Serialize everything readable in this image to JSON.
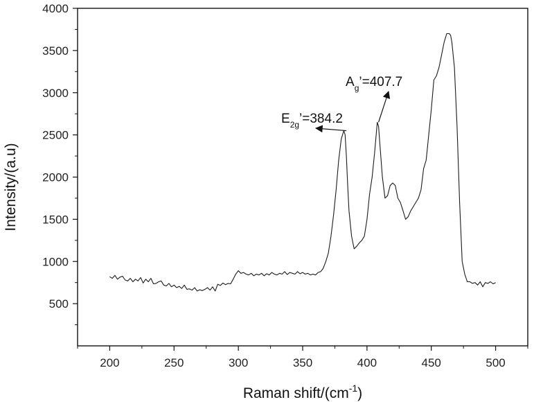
{
  "chart_data": {
    "type": "line",
    "title": "",
    "xlabel_main": "Raman shift/(cm",
    "xlabel_sup": "-1",
    "xlabel_close": ")",
    "ylabel": "Intensity/(a.u)",
    "xlim": [
      175,
      525
    ],
    "ylim": [
      0,
      4000
    ],
    "x_ticks": [
      200,
      250,
      300,
      350,
      400,
      450,
      500
    ],
    "y_ticks": [
      500,
      1000,
      1500,
      2000,
      2500,
      3000,
      3500,
      4000
    ],
    "grid": false,
    "legend": "none",
    "line_color": "#1a1a1a",
    "series": [
      {
        "x": [
          200,
          202,
          204,
          206,
          208,
          210,
          212,
          214,
          216,
          218,
          220,
          222,
          224,
          226,
          228,
          230,
          232,
          234,
          236,
          238,
          240,
          242,
          244,
          246,
          248,
          250,
          252,
          254,
          256,
          258,
          260,
          262,
          264,
          266,
          268,
          270,
          272,
          274,
          276,
          278,
          280,
          282,
          284,
          286,
          288,
          290,
          292,
          294,
          296,
          298,
          300,
          302,
          304,
          306,
          308,
          310,
          312,
          314,
          316,
          318,
          320,
          322,
          324,
          326,
          328,
          330,
          332,
          334,
          336,
          338,
          340,
          342,
          344,
          346,
          348,
          350,
          352,
          354,
          356,
          358,
          360,
          362,
          364,
          366,
          368,
          370,
          372,
          374,
          376,
          378,
          380,
          382,
          383,
          384,
          385,
          386,
          388,
          390,
          392,
          394,
          396,
          398,
          400,
          402,
          404,
          406,
          408,
          409,
          410,
          412,
          414,
          416,
          418,
          420,
          422,
          424,
          426,
          428,
          430,
          432,
          434,
          436,
          438,
          440,
          442,
          444,
          446,
          448,
          450,
          452,
          454,
          456,
          458,
          460,
          462,
          464,
          465,
          466,
          468,
          470,
          472,
          474,
          476,
          478,
          480,
          482,
          484,
          486,
          488,
          490,
          492,
          494,
          496,
          498,
          500
        ],
        "y": [
          820,
          800,
          835,
          790,
          815,
          825,
          780,
          770,
          800,
          760,
          790,
          770,
          810,
          745,
          790,
          760,
          800,
          735,
          740,
          760,
          770,
          720,
          710,
          740,
          700,
          720,
          690,
          705,
          680,
          720,
          670,
          675,
          660,
          690,
          650,
          665,
          655,
          670,
          690,
          660,
          700,
          650,
          730,
          715,
          745,
          725,
          740,
          735,
          790,
          850,
          890,
          860,
          870,
          850,
          840,
          860,
          830,
          850,
          840,
          860,
          830,
          855,
          840,
          870,
          850,
          840,
          860,
          850,
          880,
          845,
          870,
          860,
          850,
          880,
          855,
          870,
          850,
          860,
          840,
          850,
          840,
          870,
          880,
          920,
          1000,
          1100,
          1300,
          1550,
          1850,
          2200,
          2450,
          2550,
          2500,
          2250,
          1900,
          1600,
          1300,
          1150,
          1180,
          1220,
          1250,
          1300,
          1500,
          1800,
          2000,
          2300,
          2650,
          2600,
          2400,
          2000,
          1750,
          1780,
          1900,
          1930,
          1900,
          1750,
          1700,
          1600,
          1500,
          1530,
          1600,
          1650,
          1700,
          1750,
          1850,
          2100,
          2200,
          2500,
          2800,
          3150,
          3200,
          3300,
          3450,
          3600,
          3700,
          3700,
          3680,
          3600,
          3300,
          2600,
          1700,
          1000,
          850,
          760,
          760,
          740,
          750,
          720,
          760,
          700,
          750,
          740,
          760,
          735,
          750
        ]
      }
    ],
    "annotations": [
      {
        "main": "E",
        "sub": "2g",
        "suffix": "’=384.2",
        "peak_x": 384,
        "peak_y": 2550
      },
      {
        "main": "A",
        "sub": "g",
        "suffix": "’=407.7",
        "peak_x": 409,
        "peak_y": 2650
      }
    ]
  }
}
